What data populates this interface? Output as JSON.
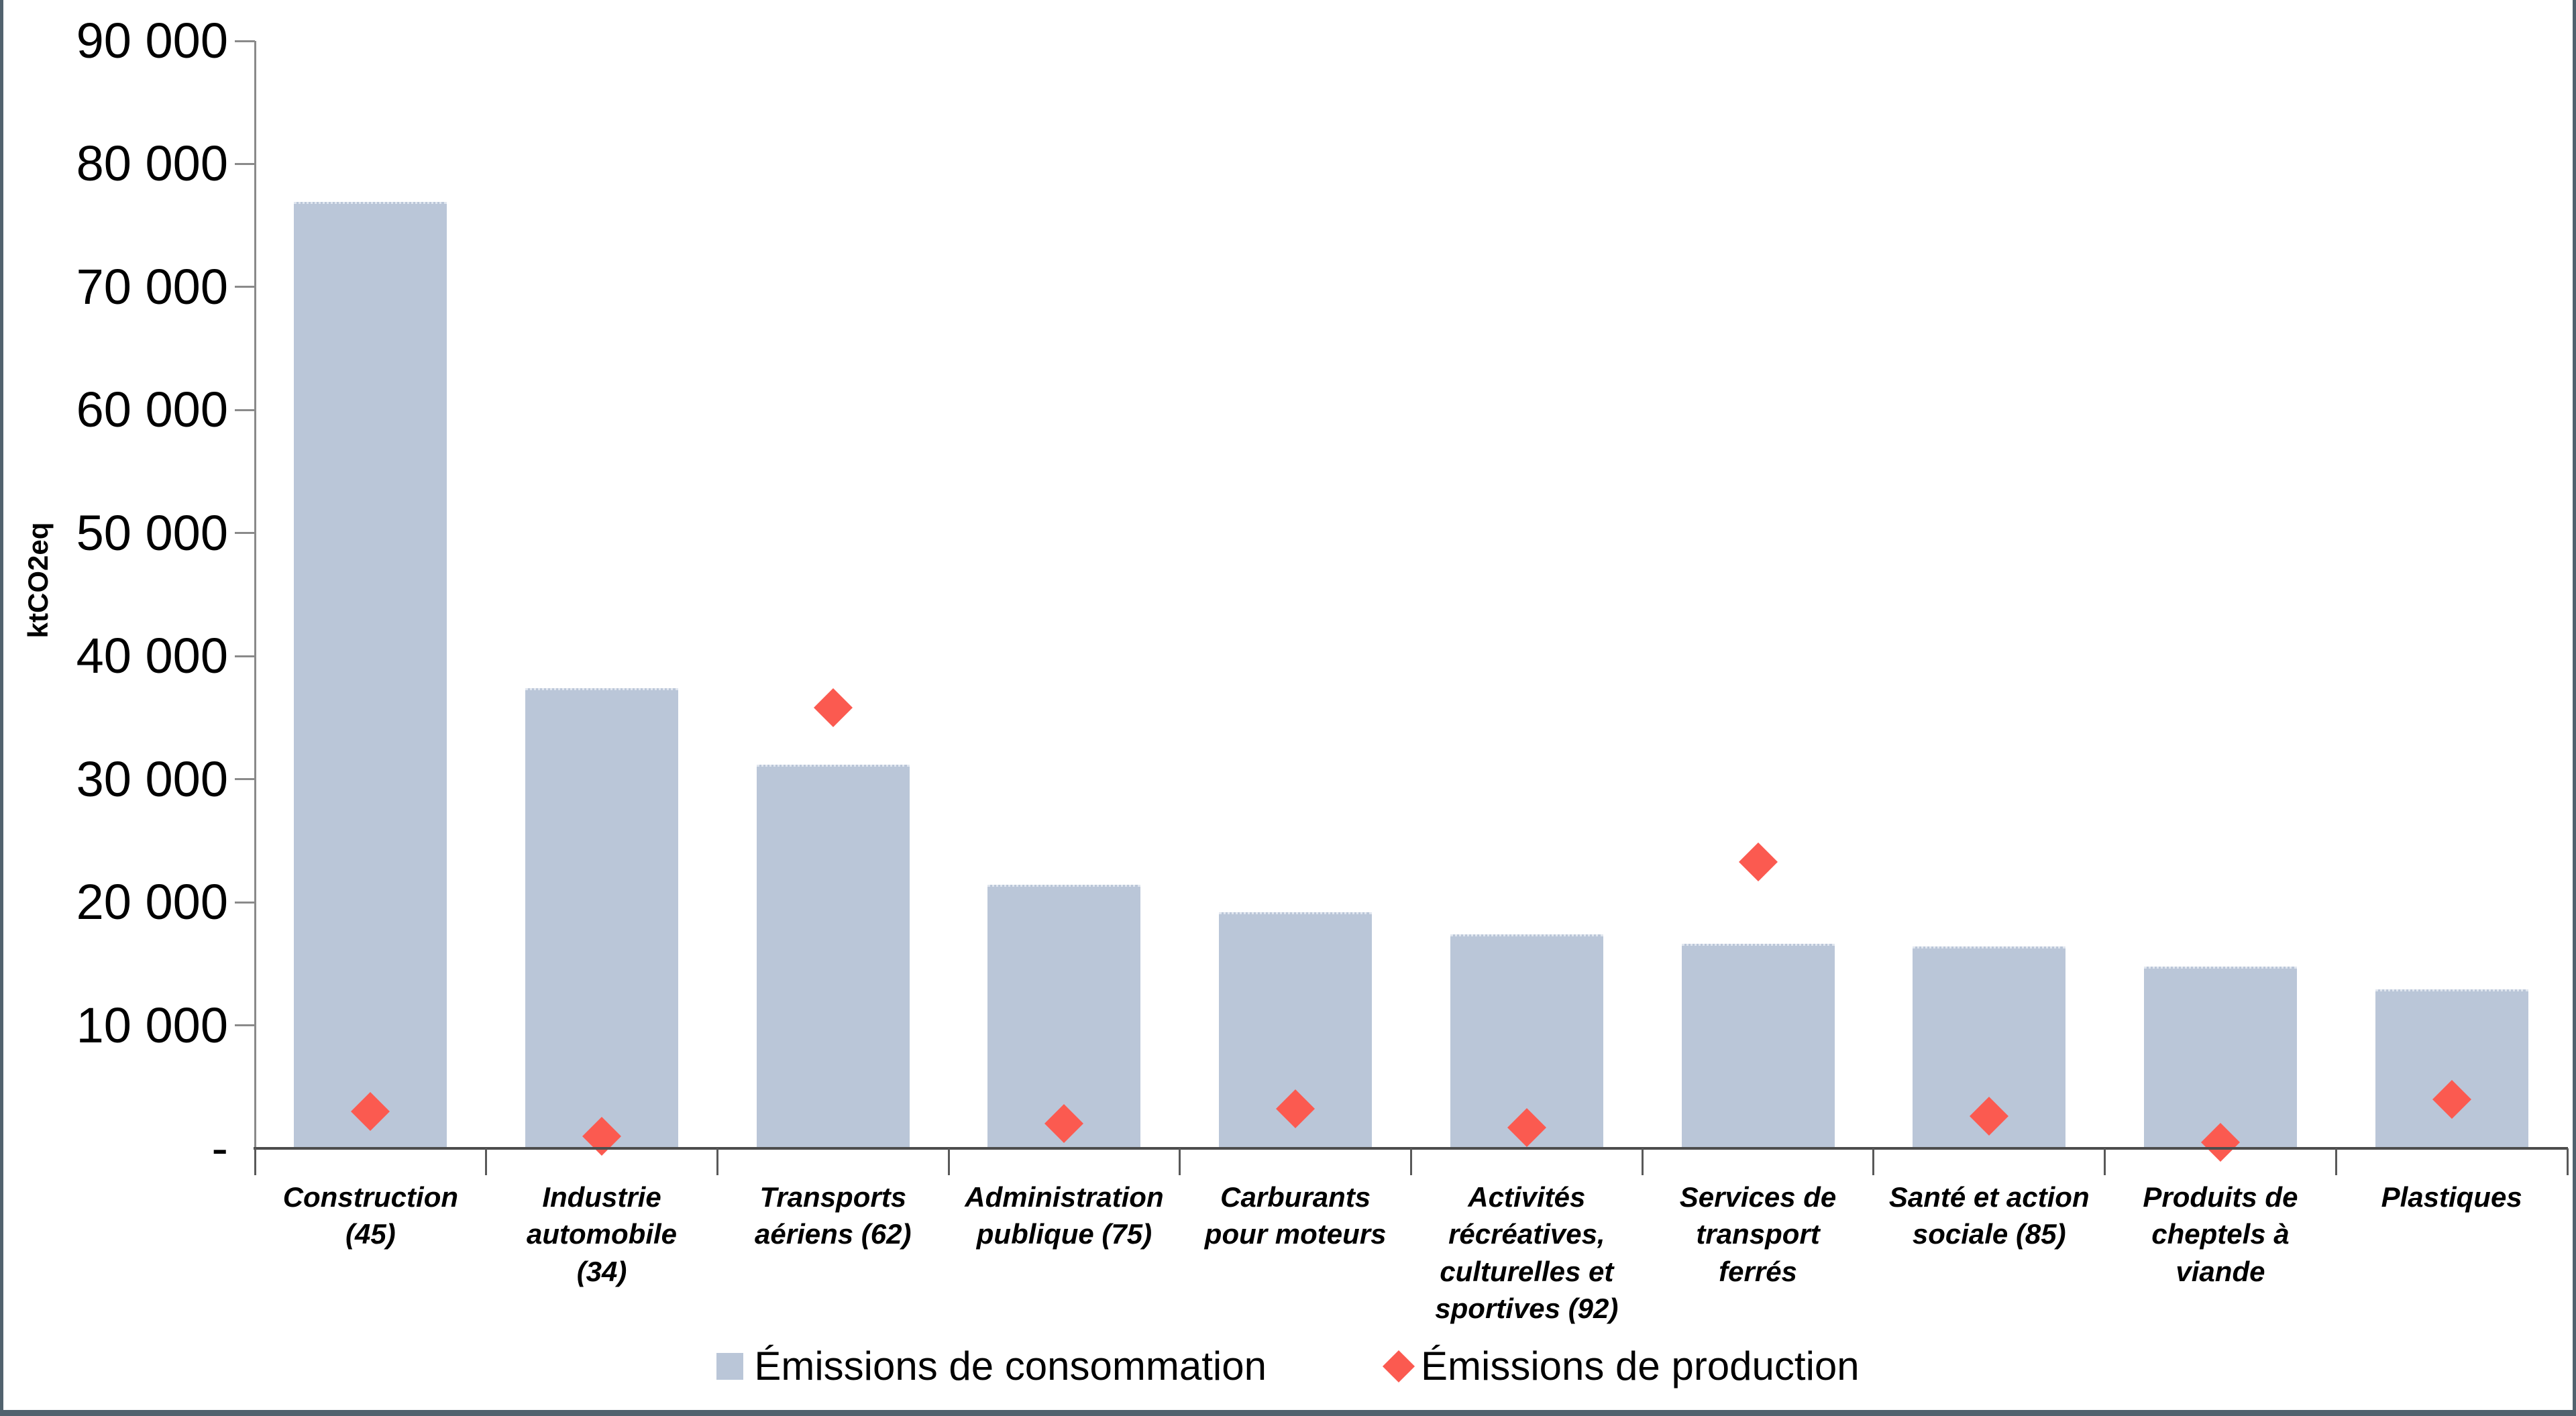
{
  "page": {
    "background": "#FFFFFF",
    "frame_border_color": "#51626E"
  },
  "chart_data": {
    "type": "bar",
    "title": "",
    "xlabel": "",
    "ylabel": "ktCO2eq",
    "ylim": [
      0,
      90000
    ],
    "ytick_step": 10000,
    "ytick_labels": [
      "-",
      "10 000",
      "20 000",
      "30 000",
      "40 000",
      "50 000",
      "60 000",
      "70 000",
      "80 000",
      "90 000"
    ],
    "grid": false,
    "legend_position": "bottom",
    "categories": [
      "Construction (45)",
      "Industrie automobile (34)",
      "Transports aériens (62)",
      "Administration publique (75)",
      "Carburants pour moteurs",
      "Activités récréatives, culturelles et sportives (92)",
      "Services de transport ferrés",
      "Santé et action sociale (85)",
      "Produits de cheptels à viande",
      "Plastiques"
    ],
    "category_label_lines": [
      [
        "Construction",
        "(45)"
      ],
      [
        "Industrie",
        "automobile",
        "(34)"
      ],
      [
        "Transports",
        "aériens (62)"
      ],
      [
        "Administration",
        "publique (75)"
      ],
      [
        "Carburants",
        "pour moteurs"
      ],
      [
        "Activités",
        "récréatives,",
        "culturelles et",
        "sportives (92)"
      ],
      [
        "Services de",
        "transport",
        "ferrés"
      ],
      [
        "Santé et action",
        "sociale (85)"
      ],
      [
        "Produits de",
        "cheptels à",
        "viande"
      ],
      [
        "Plastiques"
      ]
    ],
    "series": [
      {
        "name": "Émissions de consommation",
        "type": "bar",
        "color": "#BAC6D8",
        "values": [
          76900,
          37400,
          31200,
          21400,
          19200,
          17400,
          16600,
          16400,
          14800,
          12900
        ]
      },
      {
        "name": "Émissions de production",
        "type": "scatter",
        "marker": "diamond",
        "color": "#FB5A50",
        "values": [
          3000,
          1000,
          35800,
          2000,
          3200,
          1700,
          23300,
          2600,
          500,
          4000
        ]
      }
    ]
  }
}
